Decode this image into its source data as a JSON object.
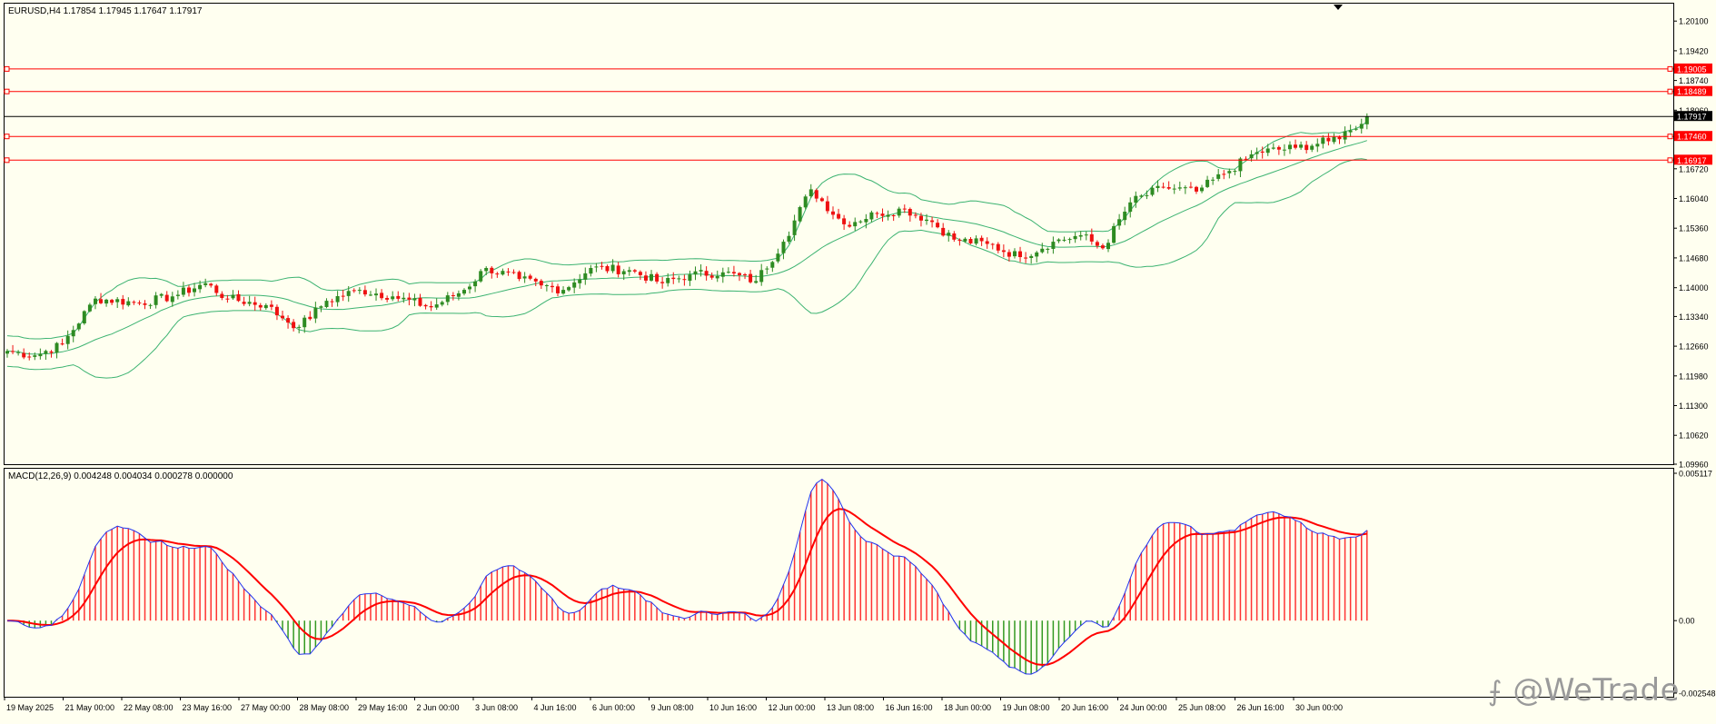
{
  "main_chart": {
    "header": "EURUSD,H4  1.17854 1.17945 1.17647 1.17917",
    "price_axis": {
      "min": 1.0996,
      "max": 1.2052,
      "ticks": [
        "1.20100",
        "1.19420",
        "1.18740",
        "1.18060",
        "1.16720",
        "1.16040",
        "1.15360",
        "1.14680",
        "1.14000",
        "1.13340",
        "1.12660",
        "1.11980",
        "1.11300",
        "1.10620",
        "1.09960"
      ]
    },
    "current_price": "1.17917",
    "hlines": [
      {
        "label": "1.19005",
        "color": "#ff0000"
      },
      {
        "label": "1.18489",
        "color": "#ff0000"
      },
      {
        "label": "1.17460",
        "color": "#ff0000"
      },
      {
        "label": "1.16917",
        "color": "#ff0000"
      }
    ]
  },
  "macd": {
    "header": "MACD(12,26,9) 0.004248 0.004034 0.000278 0.000000",
    "axis_labels": [
      "0.005117",
      "0.00",
      "-0.002548"
    ],
    "range": [
      -0.002548,
      0.005117
    ]
  },
  "time_axis": [
    "19 May 2025",
    "21 May 00:00",
    "22 May 08:00",
    "23 May 16:00",
    "27 May 00:00",
    "28 May 08:00",
    "29 May 16:00",
    "2 Jun 00:00",
    "3 Jun 08:00",
    "4 Jun 16:00",
    "6 Jun 00:00",
    "9 Jun 08:00",
    "10 Jun 16:00",
    "12 Jun 00:00",
    "13 Jun 08:00",
    "16 Jun 16:00",
    "18 Jun 00:00",
    "19 Jun 08:00",
    "20 Jun 16:00",
    "24 Jun 00:00",
    "25 Jun 08:00",
    "26 Jun 16:00",
    "30 Jun 00:00"
  ],
  "watermark": "@WeTrade",
  "colors": {
    "bull": "#2e8b22",
    "bear": "#ee1111",
    "band": "#3cb371",
    "signal": "#ff0000",
    "macd_line": "#2233ee",
    "hist_pos": "#ff3333",
    "hist_neg": "#339922",
    "grid": "#000000",
    "bg": "#fffff0"
  },
  "chart_data": [
    {
      "type": "candlestick",
      "title": "EURUSD,H4",
      "indicator": "Bollinger Bands",
      "ylim": [
        1.0996,
        1.2052
      ],
      "close_anchors": [
        [
          0,
          1.1255
        ],
        [
          5,
          1.1245
        ],
        [
          10,
          1.127
        ],
        [
          16,
          1.1375
        ],
        [
          24,
          1.1365
        ],
        [
          30,
          1.138
        ],
        [
          36,
          1.141
        ],
        [
          40,
          1.1375
        ],
        [
          47,
          1.136
        ],
        [
          50,
          1.133
        ],
        [
          53,
          1.131
        ],
        [
          58,
          1.137
        ],
        [
          64,
          1.1395
        ],
        [
          70,
          1.138
        ],
        [
          77,
          1.1355
        ],
        [
          83,
          1.1395
        ],
        [
          87,
          1.1445
        ],
        [
          93,
          1.142
        ],
        [
          97,
          1.1405
        ],
        [
          101,
          1.1395
        ],
        [
          106,
          1.1445
        ],
        [
          113,
          1.144
        ],
        [
          119,
          1.141
        ],
        [
          124,
          1.143
        ],
        [
          130,
          1.1435
        ],
        [
          136,
          1.1415
        ],
        [
          141,
          1.1505
        ],
        [
          146,
          1.1625
        ],
        [
          152,
          1.1545
        ],
        [
          158,
          1.157
        ],
        [
          163,
          1.158
        ],
        [
          168,
          1.155
        ],
        [
          172,
          1.151
        ],
        [
          178,
          1.15
        ],
        [
          184,
          1.147
        ],
        [
          190,
          1.1505
        ],
        [
          195,
          1.152
        ],
        [
          199,
          1.149
        ],
        [
          204,
          1.1595
        ],
        [
          210,
          1.163
        ],
        [
          216,
          1.162
        ],
        [
          221,
          1.166
        ],
        [
          227,
          1.171
        ],
        [
          234,
          1.172
        ],
        [
          240,
          1.1735
        ],
        [
          244,
          1.176
        ],
        [
          247,
          1.1792
        ]
      ]
    },
    {
      "type": "macd",
      "series": [
        {
          "name": "MACD(12,26,9)"
        }
      ],
      "ylim": [
        -0.002548,
        0.005117
      ]
    }
  ]
}
